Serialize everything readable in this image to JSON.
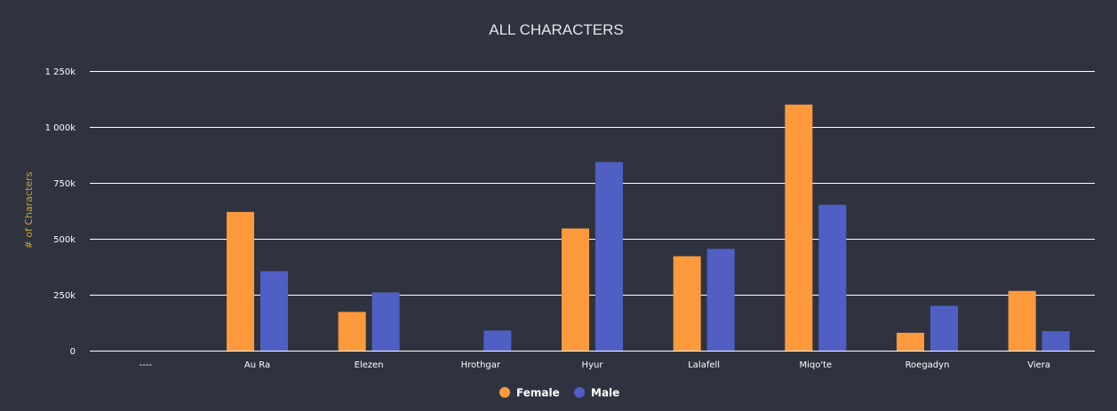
{
  "chart_data": {
    "type": "bar",
    "title": "ALL CHARACTERS",
    "xlabel": "",
    "ylabel": "# of Characters",
    "categories": [
      "----",
      "Au Ra",
      "Elezen",
      "Hrothgar",
      "Hyur",
      "Lalafell",
      "Miqo'te",
      "Roegadyn",
      "Viera"
    ],
    "series": [
      {
        "name": "Female",
        "color": "#ff9a3c",
        "values": [
          0,
          620000,
          173000,
          0,
          546000,
          422000,
          1100000,
          80000,
          267000
        ]
      },
      {
        "name": "Male",
        "color": "#4f5fc4",
        "values": [
          0,
          355000,
          260000,
          90000,
          843000,
          455000,
          652000,
          200000,
          87000
        ]
      }
    ],
    "ylim": [
      0,
      1250000
    ],
    "yticks": [
      0,
      250000,
      500000,
      750000,
      1000000,
      1250000
    ],
    "ytick_labels": [
      "0",
      "250k",
      "500k",
      "750k",
      "1 000k",
      "1 250k"
    ],
    "grid": true,
    "legend_position": "bottom-center",
    "colors": {
      "background": "#2f3340",
      "ylabel": "#c9a227"
    }
  }
}
